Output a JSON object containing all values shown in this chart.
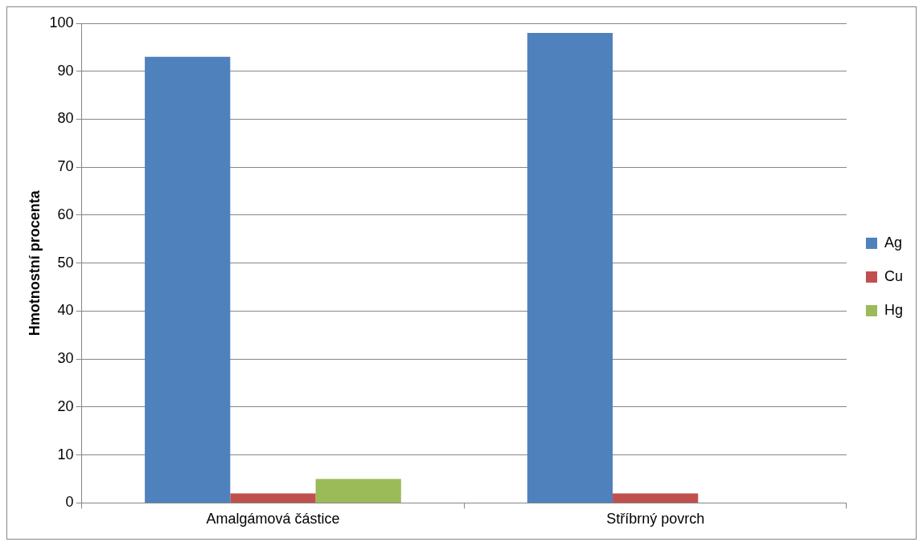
{
  "chart_data": {
    "type": "bar",
    "ylabel": "Hmotnostní procenta",
    "categories": [
      "Amalgámová částice",
      "Stříbrný povrch"
    ],
    "series": [
      {
        "name": "Ag",
        "color": "#4f81bd",
        "values": [
          93,
          98
        ]
      },
      {
        "name": "Cu",
        "color": "#c0504d",
        "values": [
          2,
          2
        ]
      },
      {
        "name": "Hg",
        "color": "#9bbb59",
        "values": [
          5,
          null
        ]
      }
    ],
    "ylim": [
      0,
      100
    ],
    "yticks": [
      0,
      10,
      20,
      30,
      40,
      50,
      60,
      70,
      80,
      90,
      100
    ],
    "grid": "y",
    "legend": "right"
  }
}
